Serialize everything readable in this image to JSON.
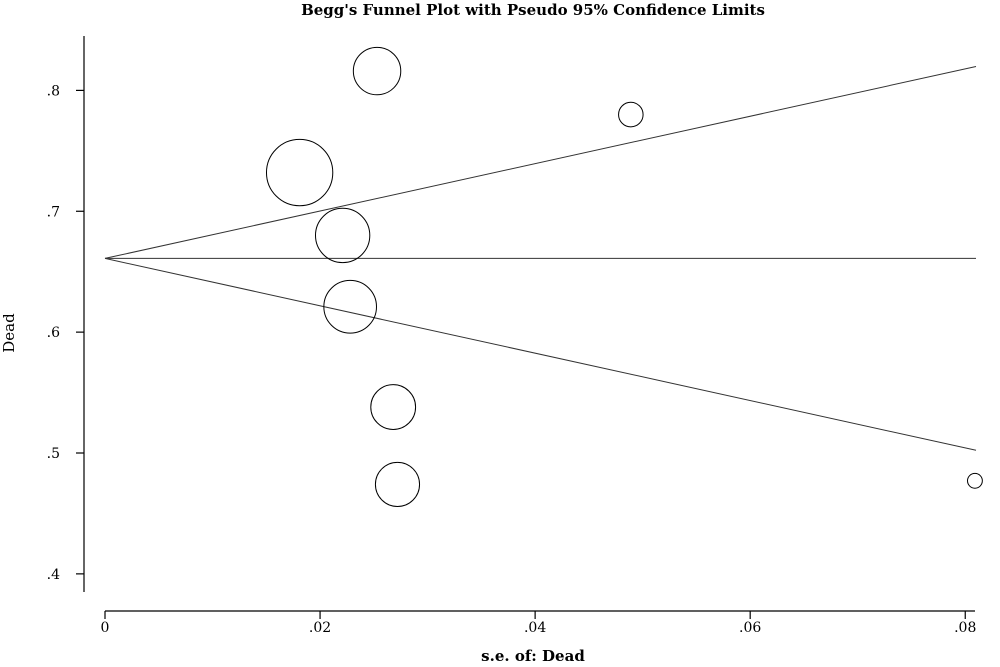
{
  "chart_data": {
    "type": "scatter",
    "title": "Begg's Funnel Plot with Pseudo 95% Confidence Limits",
    "xlabel": "s.e. of: Dead",
    "ylabel": "Dead",
    "xlim": [
      0,
      0.081
    ],
    "ylim": [
      0.385,
      0.845
    ],
    "x_ticks": [
      {
        "value": 0,
        "label": "0"
      },
      {
        "value": 0.02,
        "label": ".02"
      },
      {
        "value": 0.04,
        "label": ".04"
      },
      {
        "value": 0.06,
        "label": ".06"
      },
      {
        "value": 0.08,
        "label": ".08"
      }
    ],
    "y_ticks": [
      {
        "value": 0.4,
        "label": ".4"
      },
      {
        "value": 0.5,
        "label": ".5"
      },
      {
        "value": 0.6,
        "label": ".6"
      },
      {
        "value": 0.7,
        "label": ".7"
      },
      {
        "value": 0.8,
        "label": ".8"
      }
    ],
    "pooled_estimate": 0.661,
    "limits_multiplier": 1.96,
    "points": [
      {
        "x": 0.0253,
        "y": 0.816,
        "weight": 1562
      },
      {
        "x": 0.0489,
        "y": 0.78,
        "weight": 418
      },
      {
        "x": 0.0181,
        "y": 0.732,
        "weight": 3052
      },
      {
        "x": 0.0221,
        "y": 0.68,
        "weight": 2048
      },
      {
        "x": 0.0228,
        "y": 0.621,
        "weight": 1925
      },
      {
        "x": 0.0268,
        "y": 0.538,
        "weight": 1393
      },
      {
        "x": 0.0272,
        "y": 0.474,
        "weight": 1352
      },
      {
        "x": 0.0809,
        "y": 0.477,
        "weight": 153
      }
    ],
    "grid": false,
    "legend": "none"
  }
}
